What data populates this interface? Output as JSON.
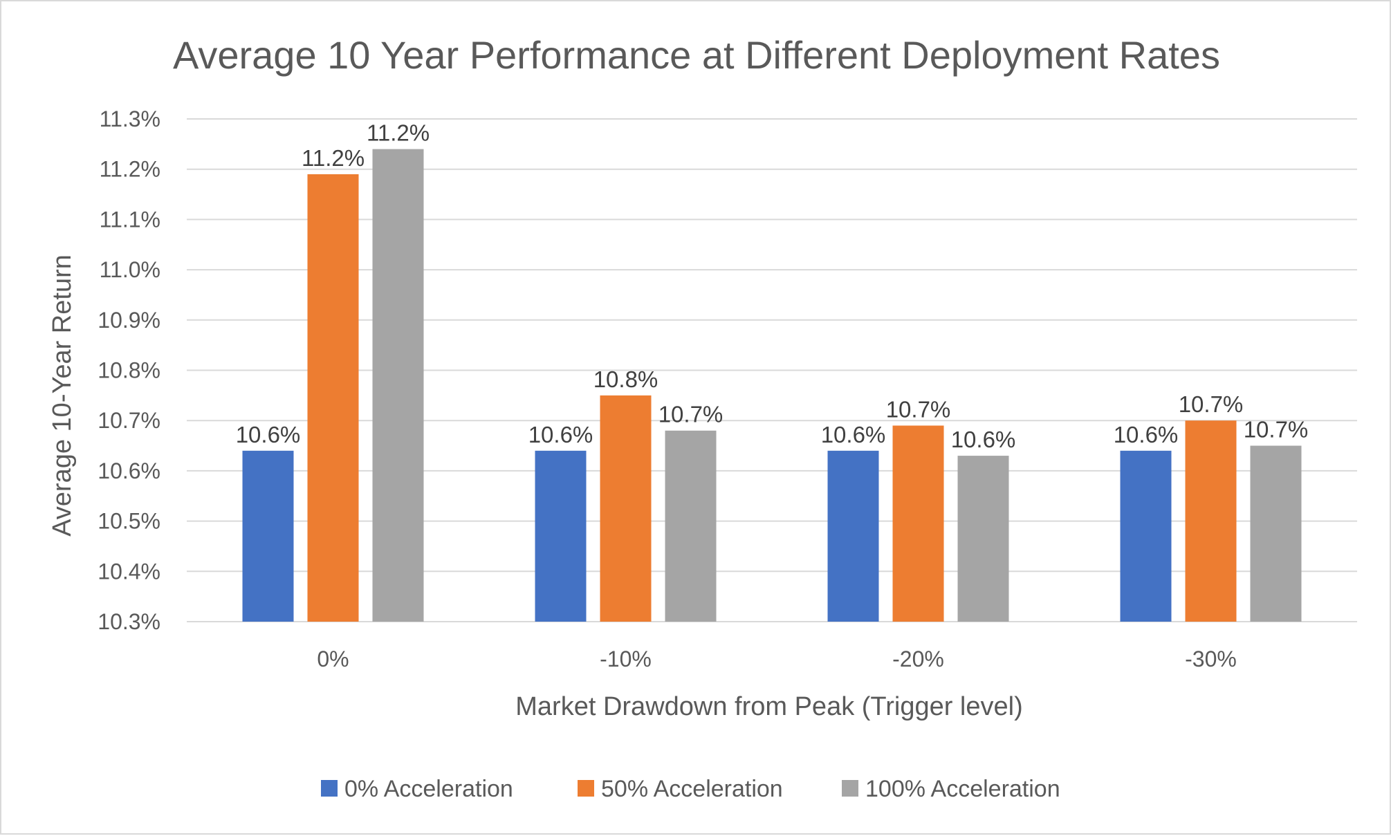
{
  "chart_data": {
    "type": "bar",
    "title": "Average 10 Year Performance at Different Deployment Rates",
    "xlabel": "Market Drawdown from Peak (Trigger level)",
    "ylabel": "Average 10-Year Return",
    "categories": [
      "0%",
      "-10%",
      "-20%",
      "-30%"
    ],
    "y_ticks": [
      "10.3%",
      "10.4%",
      "10.5%",
      "10.6%",
      "10.7%",
      "10.8%",
      "10.9%",
      "11.0%",
      "11.1%",
      "11.2%",
      "11.3%"
    ],
    "ylim": [
      10.3,
      11.3
    ],
    "grid": true,
    "legend_position": "bottom",
    "series": [
      {
        "name": "0% Acceleration",
        "color": "#4472c4",
        "values": [
          10.64,
          10.64,
          10.64,
          10.64
        ],
        "labels": [
          "10.6%",
          "10.6%",
          "10.6%",
          "10.6%"
        ]
      },
      {
        "name": "50% Acceleration",
        "color": "#ed7d31",
        "values": [
          11.19,
          10.75,
          10.69,
          10.7
        ],
        "labels": [
          "11.2%",
          "10.8%",
          "10.7%",
          "10.7%"
        ]
      },
      {
        "name": "100% Acceleration",
        "color": "#a5a5a5",
        "values": [
          11.24,
          10.68,
          10.63,
          10.65
        ],
        "labels": [
          "11.2%",
          "10.7%",
          "10.6%",
          "10.7%"
        ]
      }
    ]
  }
}
